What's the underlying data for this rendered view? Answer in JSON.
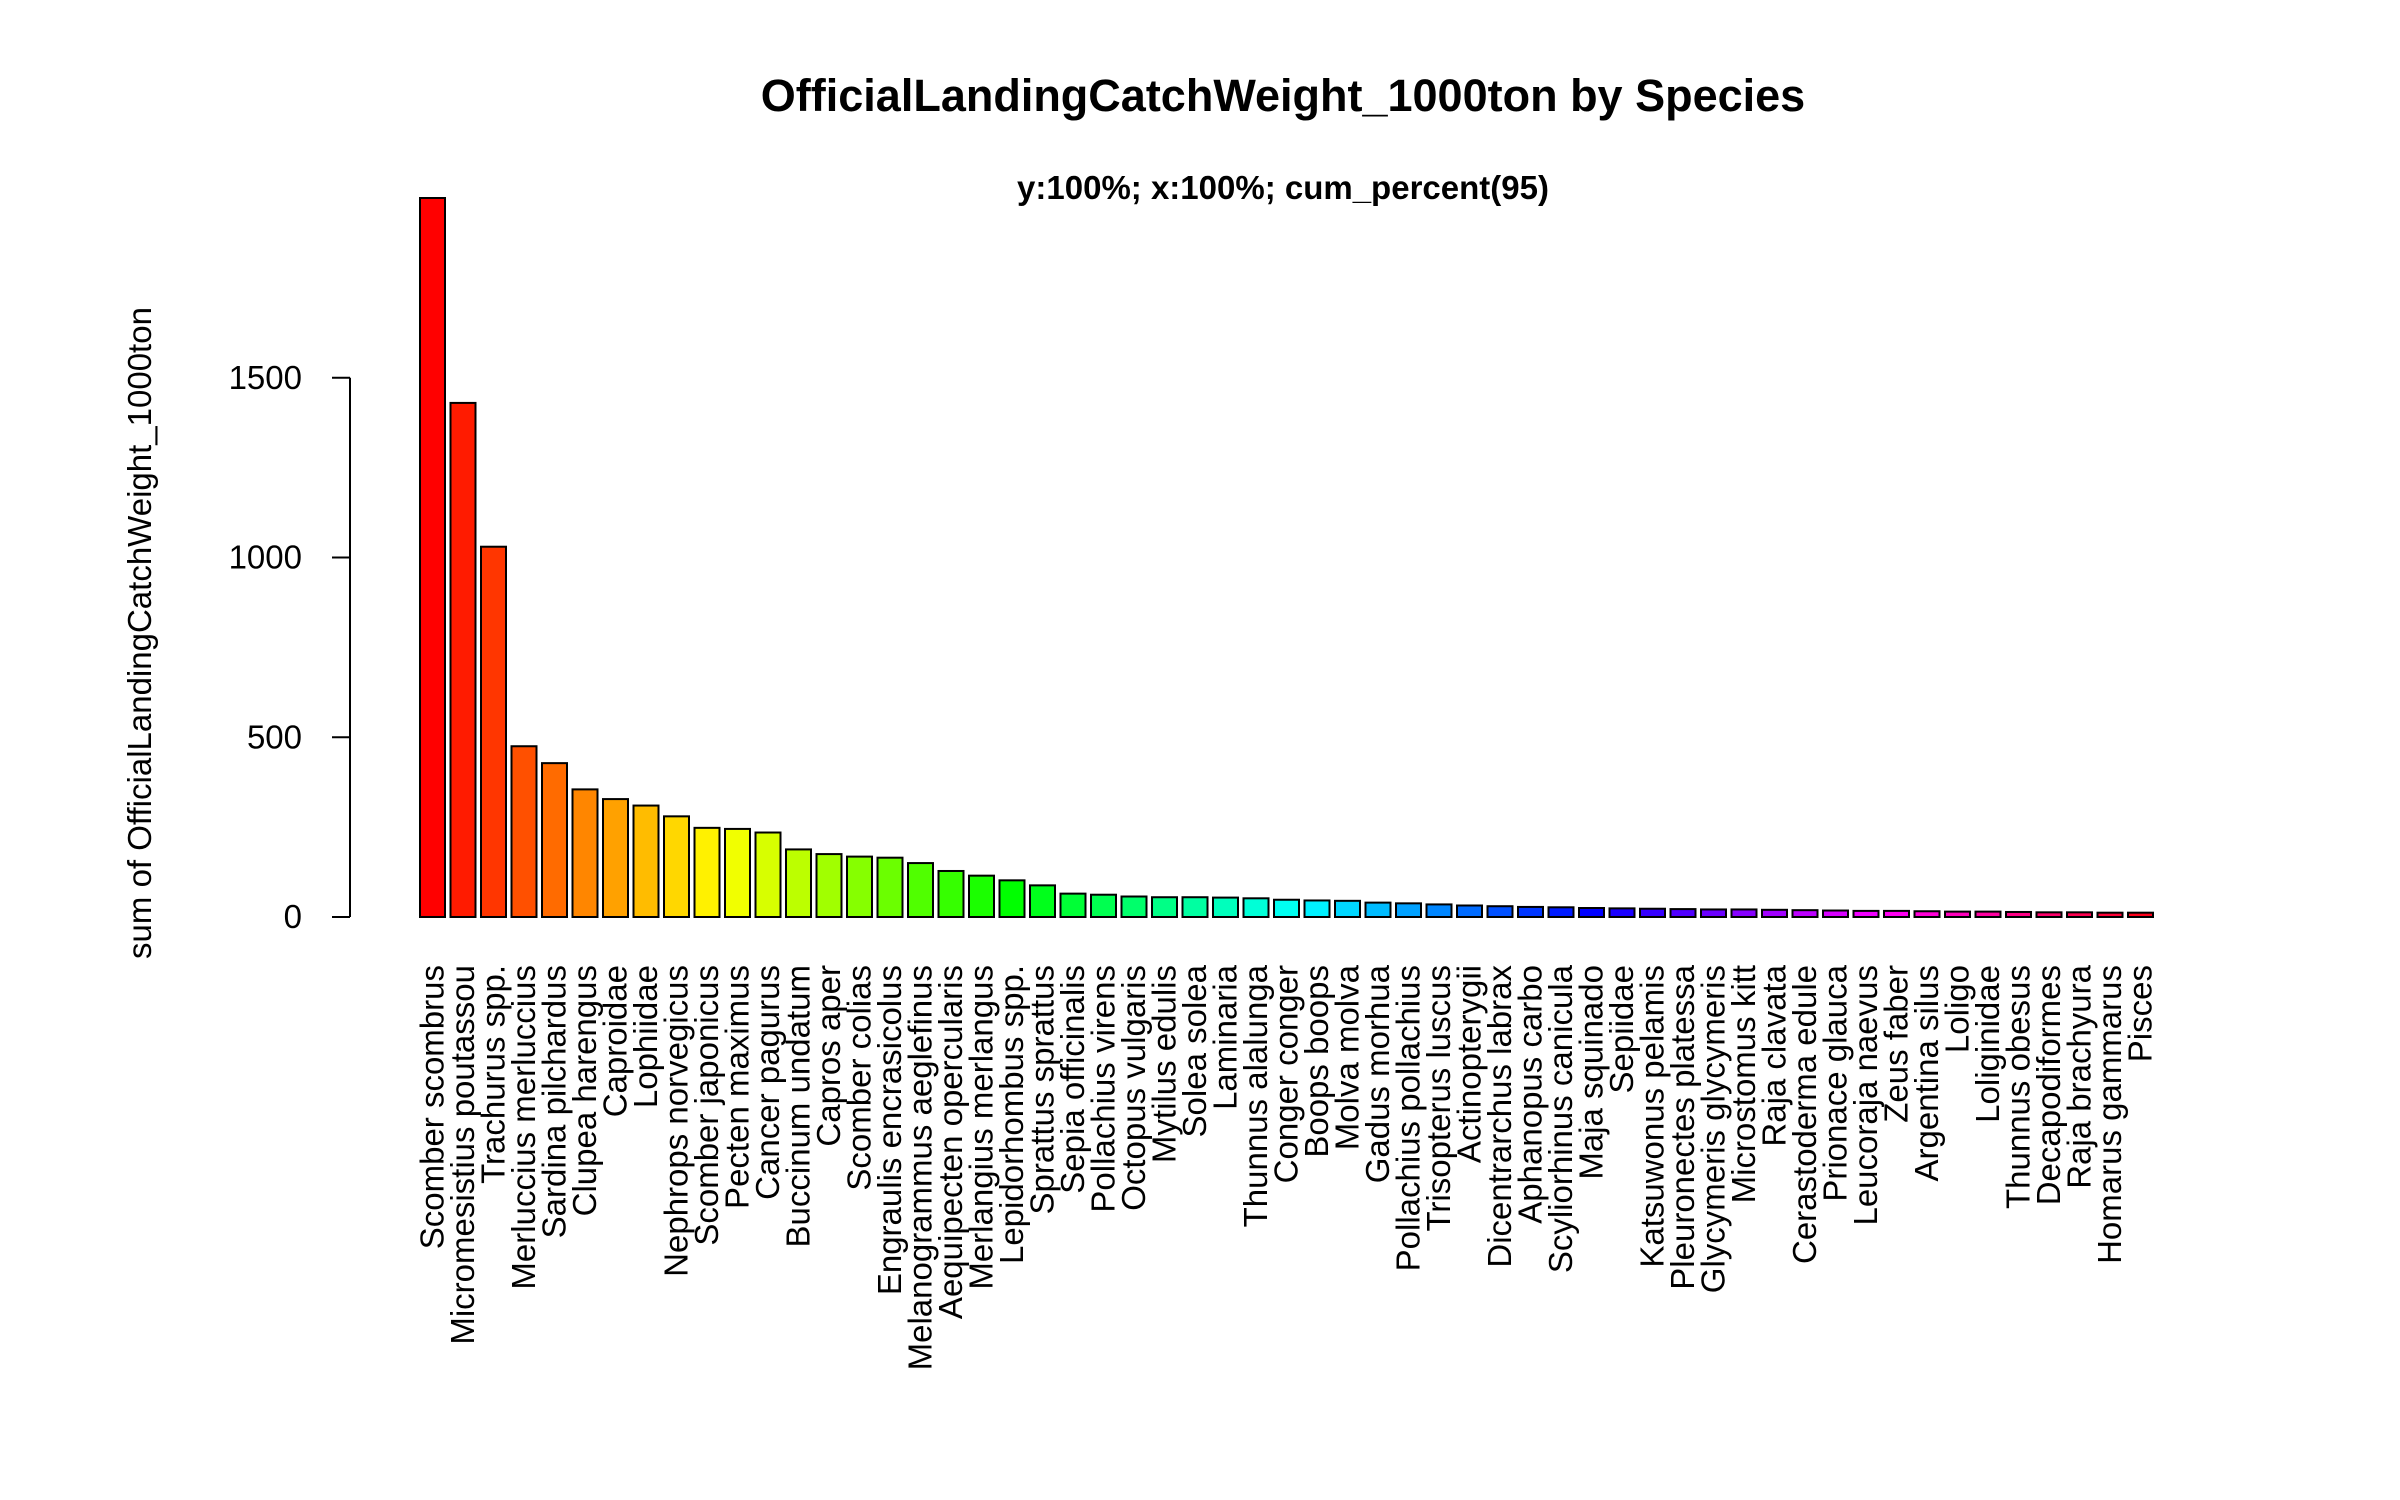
{
  "chart_data": {
    "type": "bar",
    "title": "OfficialLandingCatchWeight_1000ton by Species",
    "subtitle": "y:100%; x:100%; cum_percent(95)",
    "xlabel": "",
    "ylabel": "sum of OfficialLandingCatchWeight_1000ton",
    "ylim": [
      0,
      2000
    ],
    "yticks": [
      0,
      500,
      1000,
      1500
    ],
    "categories": [
      "Scomber scombrus",
      "Micromesistius poutassou",
      "Trachurus spp.",
      "Merluccius merluccius",
      "Sardina pilchardus",
      "Clupea harengus",
      "Caproidae",
      "Lophiidae",
      "Nephrops norvegicus",
      "Scomber japonicus",
      "Pecten maximus",
      "Cancer pagurus",
      "Buccinum undatum",
      "Capros aper",
      "Scomber colias",
      "Engraulis encrasicolus",
      "Melanogrammus aeglefinus",
      "Aequipecten opercularis",
      "Merlangius merlangus",
      "Lepidorhombus spp.",
      "Sprattus sprattus",
      "Sepia officinalis",
      "Pollachius virens",
      "Octopus vulgaris",
      "Mytilus edulis",
      "Solea solea",
      "Laminaria",
      "Thunnus alalunga",
      "Conger conger",
      "Boops boops",
      "Molva molva",
      "Gadus morhua",
      "Pollachius pollachius",
      "Trisopterus luscus",
      "Actinopterygii",
      "Dicentrarchus labrax",
      "Aphanopus carbo",
      "Scyliorhinus canicula",
      "Maja squinado",
      "Sepiidae",
      "Katsuwonus pelamis",
      "Pleuronectes platessa",
      "Glycymeris glycymeris",
      "Microstomus kitt",
      "Raja clavata",
      "Cerastoderma edule",
      "Prionace glauca",
      "Leucoraja naevus",
      "Zeus faber",
      "Argentina silus",
      "Loligo",
      "Loliginidae",
      "Thunnus obesus",
      "Decapodiformes",
      "Raja brachyura",
      "Homarus gammarus",
      "Pisces"
    ],
    "values": [
      2000,
      1430,
      1030,
      475,
      428,
      355,
      328,
      310,
      280,
      248,
      245,
      235,
      188,
      175,
      168,
      165,
      150,
      128,
      115,
      102,
      88,
      65,
      62,
      57,
      55,
      55,
      54,
      52,
      48,
      46,
      45,
      40,
      38,
      35,
      32,
      30,
      28,
      27,
      25,
      24,
      23,
      22,
      21,
      21,
      20,
      19,
      18,
      17,
      17,
      16,
      15,
      15,
      14,
      13,
      13,
      12,
      12
    ],
    "colors": [
      "#FF0000",
      "#FF1B00",
      "#FF3600",
      "#FF5000",
      "#FF6B00",
      "#FF8600",
      "#FFA100",
      "#FFBC00",
      "#FFD700",
      "#FFF100",
      "#F1FF00",
      "#D7FF00",
      "#BCFF00",
      "#A1FF00",
      "#86FF00",
      "#6BFF00",
      "#50FF00",
      "#36FF00",
      "#1BFF00",
      "#00FF00",
      "#00FF1B",
      "#00FF36",
      "#00FF50",
      "#00FF6B",
      "#00FF86",
      "#00FFA1",
      "#00FFBC",
      "#00FFD7",
      "#00FFF1",
      "#00F1FF",
      "#00D7FF",
      "#00BCFF",
      "#00A1FF",
      "#0086FF",
      "#006BFF",
      "#0050FF",
      "#0036FF",
      "#001BFF",
      "#0000FF",
      "#1B00FF",
      "#3600FF",
      "#5000FF",
      "#6B00FF",
      "#8600FF",
      "#A100FF",
      "#BC00FF",
      "#D700FF",
      "#F100FF",
      "#FF00F1",
      "#FF00D7",
      "#FF00BC",
      "#FF00A1",
      "#FF0086",
      "#FF006B",
      "#FF0050",
      "#FF0036",
      "#FF001B"
    ],
    "grid": false,
    "legend": "none"
  }
}
